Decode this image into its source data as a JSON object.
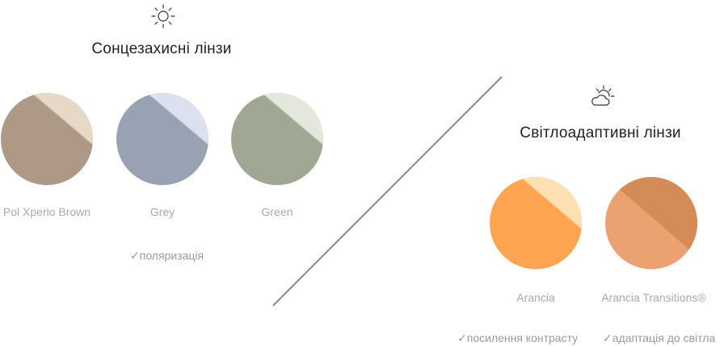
{
  "sun_section": {
    "icon": "sun-icon",
    "title": "Сонцезахисні лінзи",
    "lenses": [
      {
        "label": "Pol Xperio Brown",
        "color": "#ad9985",
        "highlight": "#ede0cf"
      },
      {
        "label": "Grey",
        "color": "#98a2b3",
        "highlight": "#dfe5f3"
      },
      {
        "label": "Green",
        "color": "#a0a893",
        "highlight": "#e7eadf"
      }
    ],
    "features": [
      {
        "check": "✓",
        "text": "поляризація"
      }
    ]
  },
  "photochromic_section": {
    "icon": "sun-cloud-icon",
    "title": "Світлоадаптивні лінзи",
    "lenses": [
      {
        "label": "Arancia",
        "color": "#ffa552",
        "highlight": "#ffe3b8"
      },
      {
        "label": "Arancia Transitions®",
        "color": "#eca270",
        "dark": "#d38b57"
      }
    ],
    "features": [
      {
        "check": "✓",
        "text": "посилення контрасту"
      },
      {
        "check": "✓",
        "text": "адаптація до світла"
      }
    ]
  },
  "colors": {
    "divider": "#8a8a8a",
    "title_text": "#222222",
    "label_text": "#a9a9a9"
  }
}
